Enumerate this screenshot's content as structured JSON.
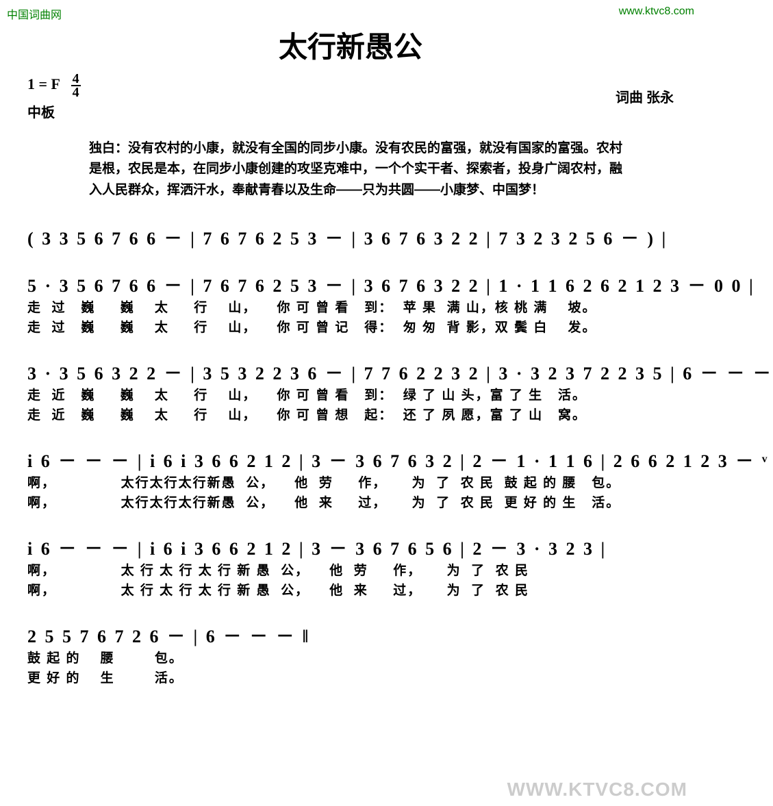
{
  "watermarks": {
    "top_left": "中国词曲网",
    "top_right": "www.ktvc8.com",
    "bottom_right": "WWW.KTVC8.COM"
  },
  "header": {
    "title": "太行新愚公",
    "key": "1 = F",
    "time_top": "4",
    "time_bot": "4",
    "tempo": "中板",
    "credits": "词曲 张永"
  },
  "monologue": {
    "label": "独白：",
    "text": "没有农村的小康，就没有全国的同步小康。没有农民的富强，就没有国家的富强。农村是根，农民是本，在同步小康创建的攻坚克难中，一个个实干者、探索者，投身广阔农村，融入人民群众，挥洒汗水，奉献青春以及生命——只为共圆——小康梦、中国梦！"
  },
  "systems": [
    {
      "notation": "( 3 3 5 6 7 6 6 － | 7 6 7 6 2 5 3 － | 3 6 7 6 3 2 2 | 7 3 2 3 2 5 6 － ) |",
      "lyrics1": "",
      "lyrics2": ""
    },
    {
      "notation": "5 · 3 5 6 7 6 6 － | 7 6 7 6 2 5 3 － | 3 6 7 6 3 2 2 | 1 · 1 1 6 2 6 2 1 2 3 － 0 0 |",
      "lyrics1": "走  过   巍     巍    太     行    山，    你 可 曾 看   到：  苹 果  满 山，核 桃 满    坡。",
      "lyrics2": "走  过   巍     巍    太     行    山，    你 可 曾 记   得：  匆 匆  背 影，双 鬓 白    发。"
    },
    {
      "notation": "3 · 3 5 6 3 2 2 － | 3 5 3 2 2 3 6 － | 7 7 6 2 2 3 2 | 3 · 3 2 3 7 2 2 3 5 | 6 － － －",
      "lyrics1": "走  近   巍     巍    太     行    山，    你 可 曾 看   到：  绿 了 山 头，富 了 生   活。",
      "lyrics2": "走  近   巍     巍    太     行    山，    你 可 曾 想   起：  还 了 夙 愿，富 了 山   窝。"
    },
    {
      "notation": "i 6 － － － | i 6 i 3 6 6 2 1 2 | 3 － 3 6 7 6 3 2 | 2 － 1 · 1 1 6 | 2 6 6 2 1 2 3 － ᵛ",
      "lyrics1": "啊，             太行太行太行新愚  公，    他  劳     作，     为  了  农 民  鼓 起 的 腰   包。",
      "lyrics2": "啊，             太行太行太行新愚  公，    他  来     过，     为  了  农 民  更 好 的 生   活。"
    },
    {
      "notation": "i 6 － － － | i 6 i 3 6 6 2 1 2 | 3 － 3 6 7 6 5 6 | 2 － 3 · 3 2 3 |",
      "lyrics1": "啊，             太 行 太 行 太 行 新 愚  公，    他  劳     作，     为  了  农 民",
      "lyrics2": "啊，             太 行 太 行 太 行 新 愚  公，    他  来     过，     为  了  农 民"
    },
    {
      "notation": "2 5 5  7 6 7 2  6  －  | 6  －  －  －  ‖",
      "lyrics1": "鼓 起 的    腰        包。",
      "lyrics2": "更 好 的    生        活。"
    }
  ],
  "colors": {
    "text": "#000000",
    "watermark_green": "#008000",
    "watermark_grey": "#cccccc",
    "background": "#ffffff"
  }
}
